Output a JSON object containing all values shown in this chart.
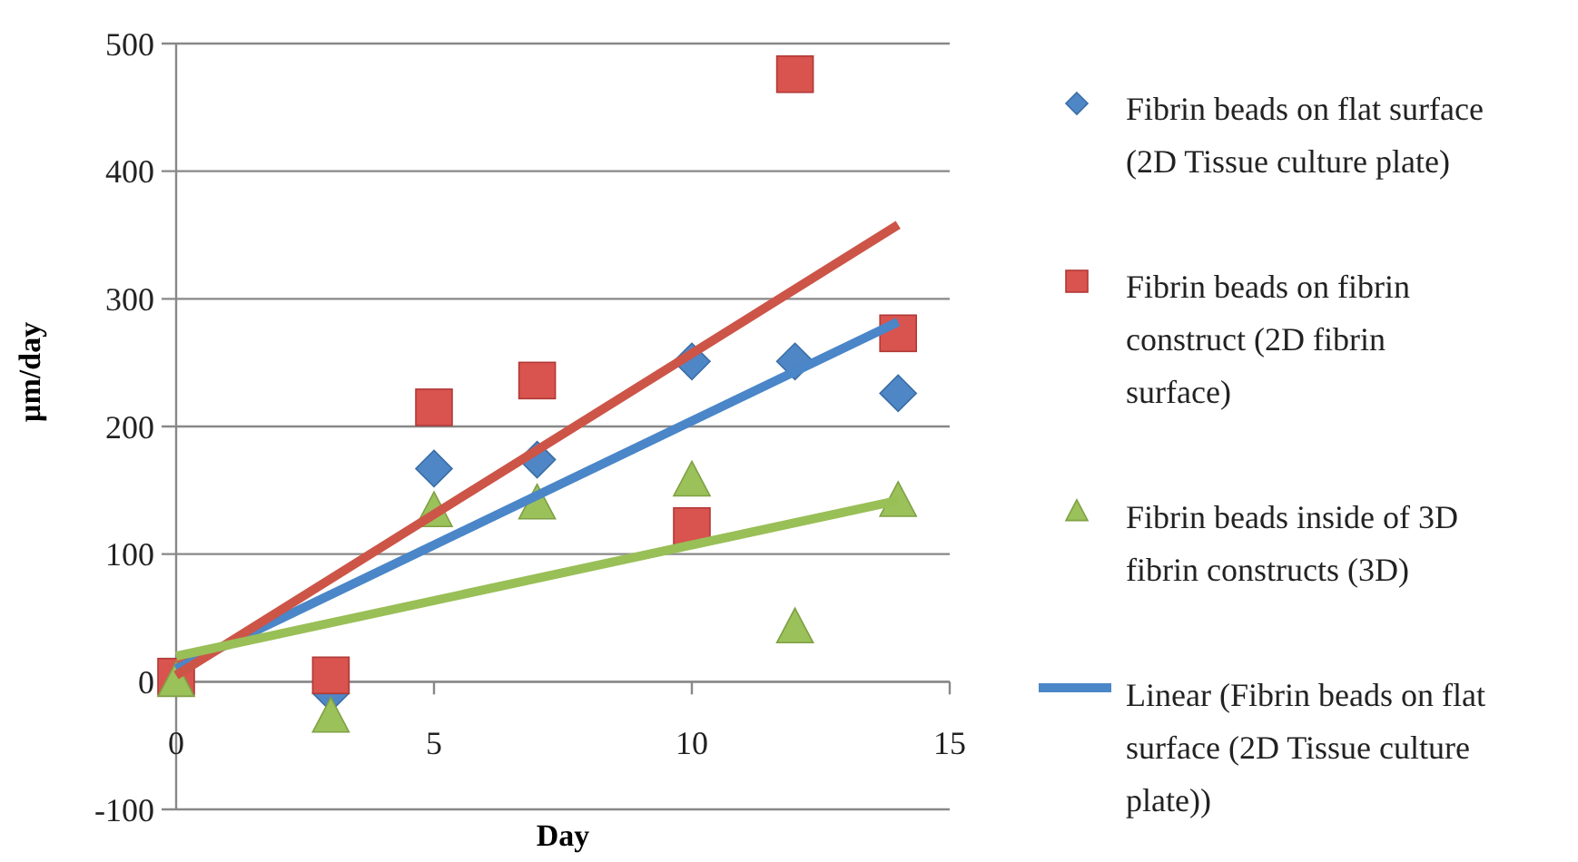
{
  "chart_data": {
    "type": "scatter",
    "xlabel": "Day",
    "ylabel": "µm/day",
    "xlim": [
      0,
      15
    ],
    "xticks": [
      0,
      5,
      10,
      15
    ],
    "ylim": [
      -100,
      500
    ],
    "yticks": [
      -100,
      0,
      100,
      200,
      300,
      400,
      500
    ],
    "grid": "y",
    "legend": "right",
    "series": [
      {
        "name": "Fibrin beads on flat surface (2D Tissue culture plate)",
        "color": "#4f86c6",
        "marker": "diamond",
        "x": [
          3,
          5,
          7,
          10,
          12,
          14
        ],
        "values": [
          -9,
          167,
          174,
          251,
          251,
          226
        ]
      },
      {
        "name": "Fibrin beads on fibrin construct (2D fibrin surface)",
        "color": "#d9534f",
        "marker": "square",
        "x": [
          0,
          3,
          5,
          7,
          10,
          12,
          14
        ],
        "values": [
          4,
          5,
          215,
          236,
          122,
          476,
          273
        ]
      },
      {
        "name": "Fibrin beads inside of 3D fibrin constructs (3D)",
        "color": "#9bc15a",
        "marker": "triangle",
        "x": [
          0,
          3,
          5,
          7,
          10,
          12,
          14
        ],
        "values": [
          0,
          -28,
          133,
          139,
          157,
          42,
          141
        ]
      },
      {
        "name": "Linear (Fibrin beads on flat surface (2D Tissue culture plate))",
        "type": "line",
        "color": "#4a86c8",
        "marker": "none",
        "x": [
          0,
          14
        ],
        "values": [
          10,
          282
        ]
      },
      {
        "type": "line",
        "color": "#cc5548",
        "marker": "none",
        "x": [
          0,
          14
        ],
        "values": [
          5,
          358
        ]
      },
      {
        "type": "line",
        "color": "#99bf57",
        "marker": "none",
        "x": [
          0,
          14
        ],
        "values": [
          20,
          142
        ]
      }
    ]
  }
}
